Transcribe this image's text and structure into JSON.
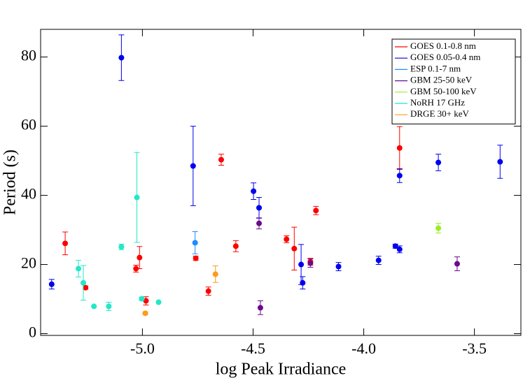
{
  "chart_data": {
    "type": "scatter",
    "x_label": "log Peak Irradiance",
    "y_label": "Period (s)",
    "xlim": [
      -5.46,
      -3.29
    ],
    "ylim": [
      -0.5,
      88
    ],
    "xticks": [
      {
        "value": -5.0,
        "label": "-5.0"
      },
      -4.5,
      {
        "value": -4.0,
        "label": "-4.0"
      },
      -3.5
    ],
    "yticks": [
      0,
      20,
      40,
      60,
      80
    ],
    "legend": "upper right",
    "series": [
      {
        "name": "GOES 0.1-0.8 nm",
        "color": "#ff0000",
        "x": [
          -5.349,
          -5.257,
          -5.029,
          -5.013,
          -4.984,
          -4.759,
          -4.702,
          -4.644,
          -4.578,
          -4.349,
          -4.314,
          -4.216,
          -3.838,
          -4.241
        ],
        "values": [
          26.1,
          13.3,
          18.8,
          22.0,
          9.5,
          21.8,
          12.3,
          50.3,
          25.3,
          27.3,
          24.6,
          35.6,
          53.7,
          20.8
        ],
        "errors": [
          3.3,
          0.5,
          1,
          3.2,
          1.2,
          0.6,
          1.2,
          1.6,
          1.6,
          1,
          6.2,
          1.2,
          6.2,
          1
        ]
      },
      {
        "name": "GOES 0.05-0.4 nm",
        "color": "#0000ee",
        "x": [
          -5.41,
          -5.095,
          -4.771,
          -4.498,
          -4.473,
          -4.283,
          -4.276,
          -4.114,
          -3.933,
          -3.857,
          -3.838,
          -3.838,
          -3.663,
          -3.384
        ],
        "values": [
          14.3,
          79.8,
          48.5,
          41.2,
          36.4,
          20.0,
          14.7,
          19.4,
          21.2,
          25.3,
          24.4,
          45.7,
          49.5,
          49.7
        ],
        "errors": [
          1.4,
          6.6,
          11.5,
          2.4,
          3,
          5.8,
          1.8,
          1.2,
          1.2,
          0.6,
          1,
          2,
          2.4,
          4.8
        ]
      },
      {
        "name": "ESP 0.1-7 nm",
        "color": "#1e8cff",
        "x": [
          -4.762
        ],
        "values": [
          26.3
        ],
        "errors": [
          3.2
        ]
      },
      {
        "name": "GBM 25-50 keV",
        "color": "#6a0a8c",
        "x": [
          -4.473,
          -4.467,
          -4.241,
          -3.578
        ],
        "values": [
          31.9,
          7.5,
          20.4,
          20.2
        ],
        "errors": [
          1.6,
          2,
          1.2,
          2
        ]
      },
      {
        "name": "GBM 50-100 keV",
        "color": "#9aee22",
        "x": [
          -3.663
        ],
        "values": [
          30.5
        ],
        "errors": [
          1.4
        ]
      },
      {
        "name": "NoRH 17 GHz",
        "color": "#22e8c8",
        "x": [
          -5.289,
          -5.267,
          -5.219,
          -5.152,
          -5.095,
          -5.025,
          -5.003,
          -4.927
        ],
        "values": [
          18.8,
          14.7,
          7.9,
          7.9,
          25.1,
          39.4,
          10.1,
          9.1
        ],
        "errors": [
          2.4,
          5,
          0,
          1.2,
          0.8,
          13,
          0.5,
          0
        ]
      },
      {
        "name": "DRGE 30+ keV",
        "color": "#ff9a1a",
        "x": [
          -4.987,
          -4.67
        ],
        "values": [
          5.9,
          17.2
        ],
        "errors": [
          0.4,
          2.4
        ]
      }
    ]
  }
}
